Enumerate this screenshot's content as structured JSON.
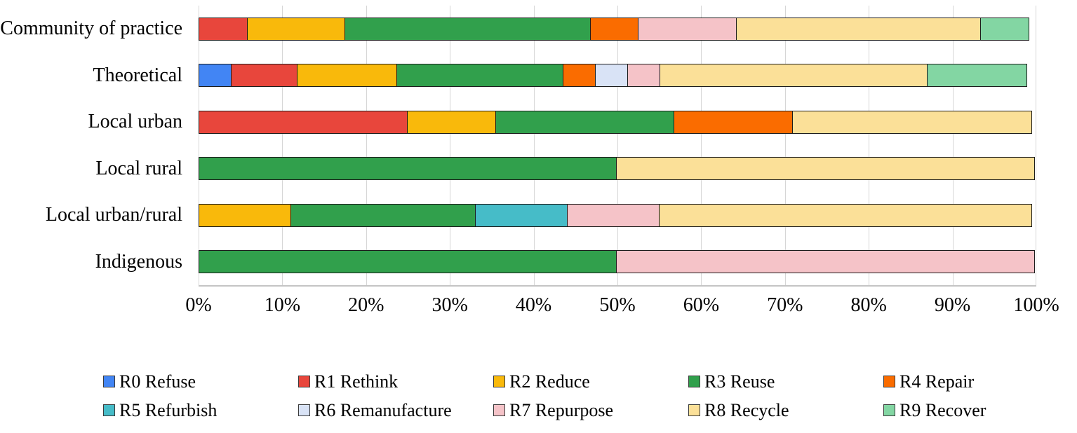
{
  "chart_data": {
    "type": "bar",
    "variant": "horizontal-stacked-100pct",
    "title": "",
    "xlabel": "",
    "ylabel": "",
    "xlim": [
      0,
      100
    ],
    "grid": true,
    "gridline_color": "#d6d6d6",
    "legend_position": "bottom",
    "x_ticks": [
      "0%",
      "10%",
      "20%",
      "30%",
      "40%",
      "50%",
      "60%",
      "70%",
      "80%",
      "90%",
      "100%"
    ],
    "categories": [
      "Community of practice",
      "Theoretical",
      "Local urban",
      "Local rural",
      "Local urban/rural",
      "Indigenous"
    ],
    "series": [
      {
        "name": "R0 Refuse",
        "color": "#4285F4",
        "values": [
          0,
          4,
          0,
          0,
          0,
          0
        ]
      },
      {
        "name": "R1 Rethink",
        "color": "#E8463C",
        "values": [
          5.9,
          8,
          25,
          0,
          0,
          0
        ]
      },
      {
        "name": "R2 Reduce",
        "color": "#F9B90B",
        "values": [
          11.8,
          12,
          10.7,
          0,
          11.1,
          0
        ]
      },
      {
        "name": "R3 Reuse",
        "color": "#31A04C",
        "values": [
          29.4,
          20,
          21.4,
          50,
          22.2,
          50
        ]
      },
      {
        "name": "R4 Repair",
        "color": "#FA6C00",
        "values": [
          5.9,
          4,
          14.3,
          0,
          0,
          0
        ]
      },
      {
        "name": "R5 Refurbish",
        "color": "#46BCC8",
        "values": [
          0,
          0,
          0,
          0,
          11.1,
          0
        ]
      },
      {
        "name": "R6 Remanufacture",
        "color": "#D9E3F6",
        "values": [
          0,
          4,
          0,
          0,
          0,
          0
        ]
      },
      {
        "name": "R7 Repurpose",
        "color": "#F5C3C8",
        "values": [
          11.8,
          4,
          0,
          0,
          11.1,
          50
        ]
      },
      {
        "name": "R8 Recycle",
        "color": "#FBE098",
        "values": [
          29.3,
          32,
          28.6,
          50,
          44.5,
          0
        ]
      },
      {
        "name": "R9 Recover",
        "color": "#83D6A3",
        "values": [
          5.9,
          12,
          0,
          0,
          0,
          0
        ]
      }
    ]
  }
}
